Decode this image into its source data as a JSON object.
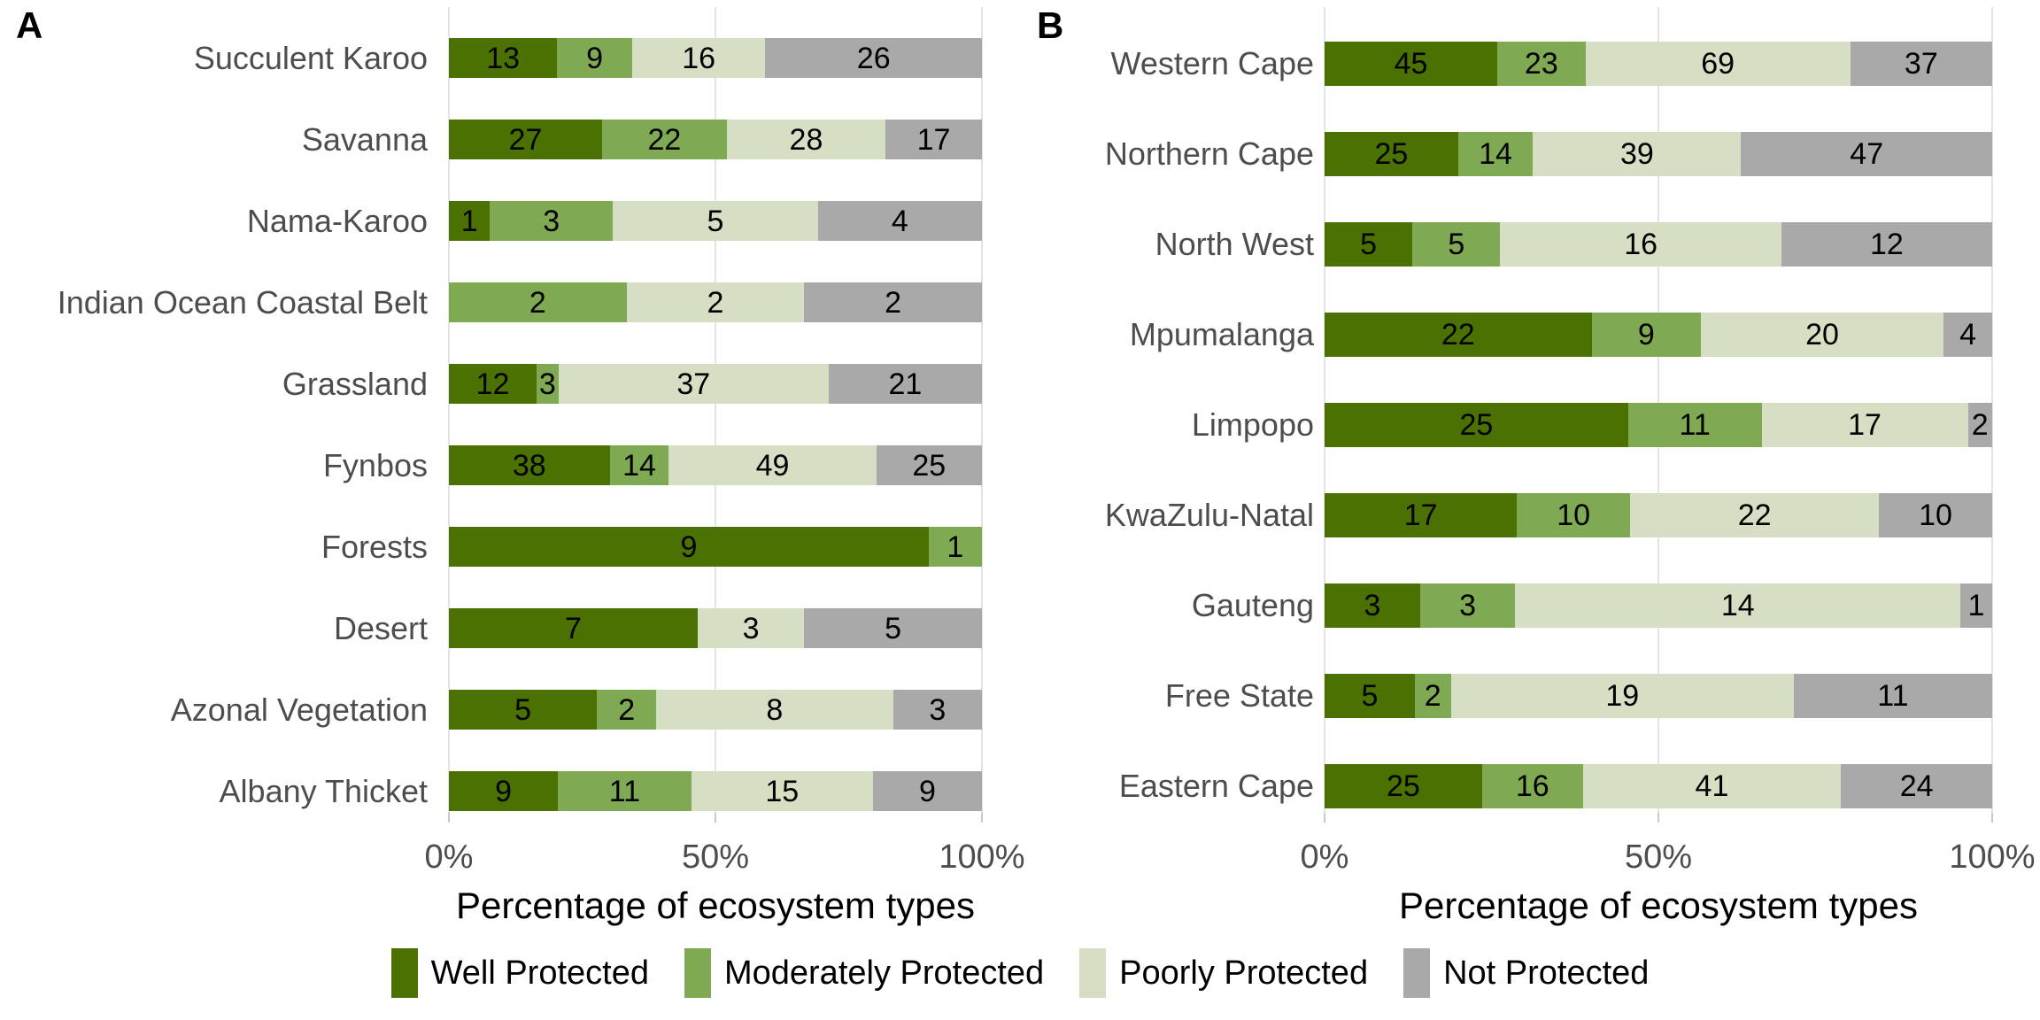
{
  "chart_data": [
    {
      "type": "bar",
      "panel": "A",
      "orientation": "horizontal",
      "stacked": "fill",
      "categories": [
        "Succulent Karoo",
        "Savanna",
        "Nama-Karoo",
        "Indian Ocean Coastal Belt",
        "Grassland",
        "Fynbos",
        "Forests",
        "Desert",
        "Azonal Vegetation",
        "Albany Thicket"
      ],
      "series": [
        {
          "name": "Well Protected",
          "values": [
            13,
            27,
            1,
            0,
            12,
            38,
            9,
            7,
            5,
            9
          ]
        },
        {
          "name": "Moderately Protected",
          "values": [
            9,
            22,
            3,
            2,
            3,
            14,
            1,
            0,
            2,
            11
          ]
        },
        {
          "name": "Poorly Protected",
          "values": [
            16,
            28,
            5,
            2,
            37,
            49,
            0,
            3,
            8,
            15
          ]
        },
        {
          "name": "Not Protected",
          "values": [
            26,
            17,
            4,
            2,
            21,
            25,
            0,
            5,
            3,
            9
          ]
        }
      ],
      "xlabel": "Percentage of ecosystem types",
      "x_ticks": [
        "0%",
        "50%",
        "100%"
      ],
      "xlim": [
        0,
        1
      ],
      "grid": "major-vertical",
      "value_labels": "segment counts shown inside bars"
    },
    {
      "type": "bar",
      "panel": "B",
      "orientation": "horizontal",
      "stacked": "fill",
      "categories": [
        "Western Cape",
        "Northern Cape",
        "North West",
        "Mpumalanga",
        "Limpopo",
        "KwaZulu-Natal",
        "Gauteng",
        "Free State",
        "Eastern Cape"
      ],
      "series": [
        {
          "name": "Well Protected",
          "values": [
            45,
            25,
            5,
            22,
            25,
            17,
            3,
            5,
            25
          ]
        },
        {
          "name": "Moderately Protected",
          "values": [
            23,
            14,
            5,
            9,
            11,
            10,
            3,
            2,
            16
          ]
        },
        {
          "name": "Poorly Protected",
          "values": [
            69,
            39,
            16,
            20,
            17,
            22,
            14,
            19,
            41
          ]
        },
        {
          "name": "Not Protected",
          "values": [
            37,
            47,
            12,
            4,
            2,
            10,
            1,
            11,
            24
          ]
        }
      ],
      "xlabel": "Percentage of ecosystem types",
      "x_ticks": [
        "0%",
        "50%",
        "100%"
      ],
      "xlim": [
        0,
        1
      ],
      "grid": "major-vertical",
      "value_labels": "segment counts shown inside bars"
    }
  ],
  "legend": [
    {
      "label": "Well Protected",
      "color_key": "well_protected"
    },
    {
      "label": "Moderately Protected",
      "color_key": "moderately_protected"
    },
    {
      "label": "Poorly Protected",
      "color_key": "poorly_protected"
    },
    {
      "label": "Not Protected",
      "color_key": "not_protected"
    }
  ],
  "colors": {
    "well_protected": "#4A7102",
    "moderately_protected": "#7FA953",
    "poorly_protected": "#D6DEC4",
    "not_protected": "#A9A9A9",
    "grid": "#E4E4E4",
    "tick": "#C9C9C9",
    "axis_text": "#4D4D4D",
    "axis_title": "#000000",
    "background": "#FFFFFF"
  }
}
